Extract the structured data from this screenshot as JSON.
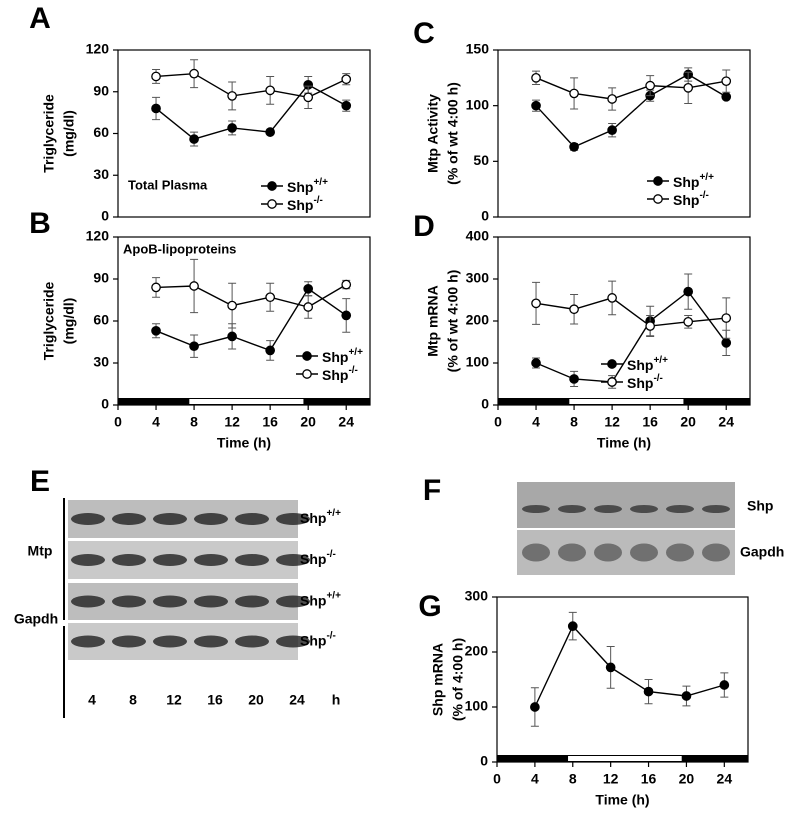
{
  "chart_data": [
    {
      "type": "line",
      "panel_label": "A",
      "y_label": [
        "Triglyceride",
        "(mg/dl)"
      ],
      "annotation": "Total Plasma",
      "xlim": [
        0,
        26.5
      ],
      "ylim": [
        0,
        120
      ],
      "yticks": [
        0,
        30,
        60,
        90,
        120
      ],
      "x": [
        4,
        8,
        12,
        16,
        20,
        24
      ],
      "series": [
        {
          "name": "Shp+/+",
          "color": "#000000",
          "marker": "filled",
          "values": [
            78,
            56,
            64,
            61,
            95,
            80
          ],
          "errors": [
            8,
            5,
            5,
            1,
            6,
            4
          ]
        },
        {
          "name": "Shp-/-",
          "color": "#000000",
          "marker": "open",
          "values": [
            101,
            103,
            87,
            91,
            86,
            99
          ],
          "errors": [
            5,
            10,
            10,
            10,
            8,
            4
          ]
        }
      ]
    },
    {
      "type": "line",
      "panel_label": "B",
      "y_label": [
        "Triglyceride",
        "(mg/dl)"
      ],
      "annotation": "ApoB-lipoproteins",
      "x_label": "Time (h)",
      "xlim": [
        0,
        26.5
      ],
      "xticks": [
        0,
        4,
        8,
        12,
        16,
        20,
        24
      ],
      "ylim": [
        0,
        120
      ],
      "yticks": [
        0,
        30,
        60,
        90,
        120
      ],
      "light_phase": [
        7.5,
        19.5
      ],
      "x": [
        4,
        8,
        12,
        16,
        20,
        24
      ],
      "series": [
        {
          "name": "Shp+/+",
          "color": "#000000",
          "marker": "filled",
          "values": [
            53,
            42,
            49,
            39,
            83,
            64
          ],
          "errors": [
            5,
            8,
            9,
            7,
            5,
            12
          ]
        },
        {
          "name": "Shp-/-",
          "color": "#000000",
          "marker": "open",
          "values": [
            84,
            85,
            71,
            77,
            70,
            86
          ],
          "errors": [
            7,
            19,
            16,
            10,
            8,
            3
          ]
        }
      ]
    },
    {
      "type": "line",
      "panel_label": "C",
      "y_label": [
        "Mtp Activity",
        "(% of wt 4:00 h)"
      ],
      "xlim": [
        0,
        26.5
      ],
      "ylim": [
        0,
        150
      ],
      "yticks": [
        0,
        50,
        100,
        150
      ],
      "x": [
        4,
        8,
        12,
        16,
        20,
        24
      ],
      "series": [
        {
          "name": "Shp+/+",
          "color": "#000000",
          "marker": "filled",
          "values": [
            100,
            63,
            78,
            109,
            128,
            108
          ],
          "errors": [
            5,
            3,
            6,
            5,
            6,
            2
          ]
        },
        {
          "name": "Shp-/-",
          "color": "#000000",
          "marker": "open",
          "values": [
            125,
            111,
            106,
            118,
            116,
            122
          ],
          "errors": [
            6,
            14,
            10,
            9,
            14,
            10
          ]
        }
      ]
    },
    {
      "type": "line",
      "panel_label": "D",
      "y_label": [
        "Mtp mRNA",
        "(% of wt 4:00 h)"
      ],
      "x_label": "Time (h)",
      "xlim": [
        0,
        26.5
      ],
      "xticks": [
        0,
        4,
        8,
        12,
        16,
        20,
        24
      ],
      "ylim": [
        0,
        400
      ],
      "yticks": [
        0,
        100,
        200,
        300,
        400
      ],
      "light_phase": [
        7.5,
        19.5
      ],
      "x": [
        4,
        8,
        12,
        16,
        20,
        24
      ],
      "series": [
        {
          "name": "Shp+/+",
          "color": "#000000",
          "marker": "filled",
          "values": [
            100,
            62,
            55,
            200,
            270,
            148
          ],
          "errors": [
            12,
            18,
            15,
            35,
            42,
            30
          ]
        },
        {
          "name": "Shp-/-",
          "color": "#000000",
          "marker": "open",
          "values": [
            242,
            228,
            255,
            188,
            198,
            207
          ],
          "errors": [
            50,
            35,
            40,
            25,
            15,
            48
          ]
        }
      ]
    },
    {
      "type": "line",
      "panel_label": "G",
      "y_label": [
        "Shp mRNA",
        "(% of 4:00 h)"
      ],
      "x_label": "Time (h)",
      "xlim": [
        0,
        26.5
      ],
      "xticks": [
        0,
        4,
        8,
        12,
        16,
        20,
        24
      ],
      "ylim": [
        0,
        300
      ],
      "yticks": [
        0,
        100,
        200,
        300
      ],
      "light_phase": [
        7.5,
        19.5
      ],
      "x": [
        4,
        8,
        12,
        16,
        20,
        24
      ],
      "series": [
        {
          "color": "#000000",
          "marker": "filled",
          "values": [
            100,
            247,
            172,
            128,
            120,
            140
          ],
          "errors": [
            35,
            25,
            38,
            22,
            18,
            22
          ]
        }
      ]
    }
  ],
  "blots": {
    "E": {
      "panel_label": "E",
      "groups": [
        "Mtp",
        "Gapdh"
      ],
      "row_labels": [
        "Shp+/+",
        "Shp-/-",
        "Shp+/+",
        "Shp-/-"
      ],
      "lanes": [
        "4",
        "8",
        "12",
        "16",
        "20",
        "24"
      ],
      "unit": "h"
    },
    "F": {
      "panel_label": "F",
      "row_labels": [
        "Shp",
        "Gapdh"
      ]
    }
  }
}
